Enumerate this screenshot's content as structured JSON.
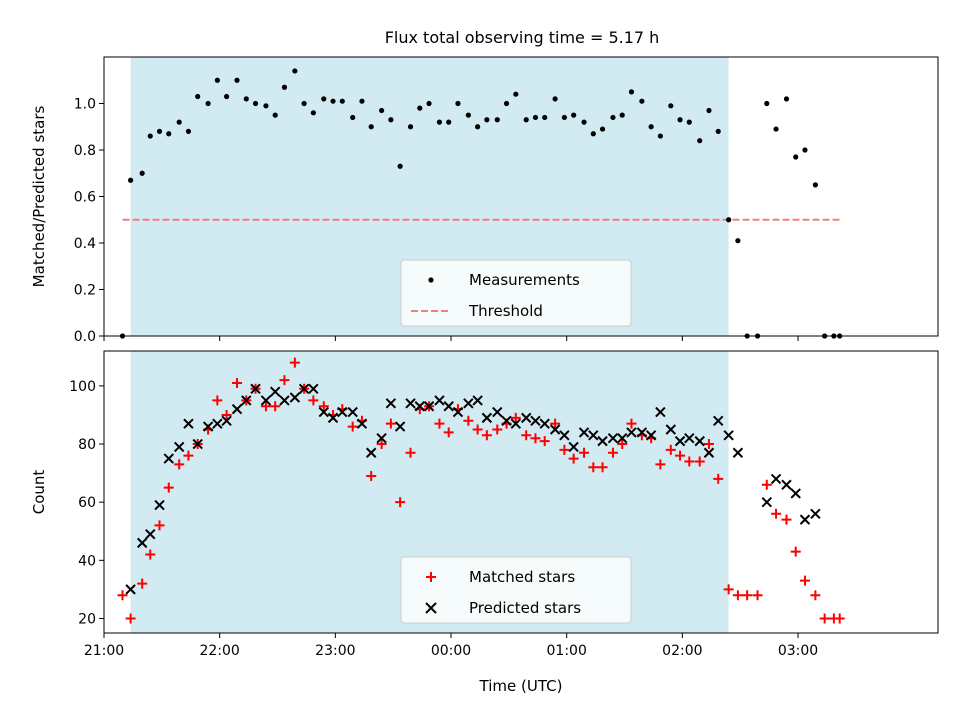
{
  "title": "Flux total observing time = 5.17 h",
  "colors": {
    "shade": "#add8e6",
    "measurement": "#000000",
    "threshold": "#f08080",
    "matched": "#ff0000",
    "predicted": "#000000"
  },
  "chart_data": [
    {
      "type": "scatter",
      "ylabel": "Matched/Predicted stars",
      "xlabel": "",
      "ylim": [
        0,
        1.2
      ],
      "yticks": [
        0.0,
        0.2,
        0.4,
        0.6,
        0.8,
        1.0
      ],
      "ytick_labels": [
        "0.0",
        "0.2",
        "0.4",
        "0.6",
        "0.8",
        "1.0"
      ],
      "xlim": [
        -0.23,
        6.98
      ],
      "shaded_interval": [
        0.0,
        5.17
      ],
      "grid": false,
      "legend": {
        "placement": "lower-center",
        "entries": [
          "Measurements",
          "Threshold"
        ]
      },
      "threshold": {
        "name": "Threshold",
        "value": 0.5,
        "x_range": [
          -0.07,
          6.13
        ]
      },
      "series": [
        {
          "name": "Measurements",
          "marker": "dot",
          "x": [
            -0.07,
            0.0,
            0.1,
            0.17,
            0.25,
            0.33,
            0.42,
            0.5,
            0.58,
            0.67,
            0.75,
            0.83,
            0.92,
            1.0,
            1.08,
            1.17,
            1.25,
            1.33,
            1.42,
            1.5,
            1.58,
            1.67,
            1.75,
            1.83,
            1.92,
            2.0,
            2.08,
            2.17,
            2.25,
            2.33,
            2.42,
            2.5,
            2.58,
            2.67,
            2.75,
            2.83,
            2.92,
            3.0,
            3.08,
            3.17,
            3.25,
            3.33,
            3.42,
            3.5,
            3.58,
            3.67,
            3.75,
            3.83,
            3.92,
            4.0,
            4.08,
            4.17,
            4.25,
            4.33,
            4.42,
            4.5,
            4.58,
            4.67,
            4.75,
            4.83,
            4.92,
            5.0,
            5.08,
            5.17,
            5.25,
            5.33,
            5.42,
            5.5,
            5.58,
            5.67,
            5.75,
            5.83,
            5.92,
            6.0,
            6.08,
            6.13
          ],
          "y": [
            0.0,
            0.67,
            0.7,
            0.86,
            0.88,
            0.87,
            0.92,
            0.88,
            1.03,
            1.0,
            1.1,
            1.03,
            1.1,
            1.02,
            1.0,
            0.99,
            0.95,
            1.07,
            1.14,
            1.0,
            0.96,
            1.02,
            1.01,
            1.01,
            0.94,
            1.01,
            0.9,
            0.97,
            0.93,
            0.73,
            0.9,
            0.98,
            1.0,
            0.92,
            0.92,
            1.0,
            0.95,
            0.9,
            0.93,
            0.93,
            1.0,
            1.04,
            0.93,
            0.94,
            0.94,
            1.02,
            0.94,
            0.95,
            0.92,
            0.87,
            0.89,
            0.94,
            0.95,
            1.05,
            1.01,
            0.9,
            0.86,
            0.99,
            0.93,
            0.92,
            0.84,
            0.97,
            0.88,
            0.5,
            0.41,
            0.0,
            0.0,
            1.0,
            0.89,
            1.02,
            0.77,
            0.8,
            0.65,
            0.0,
            0.0,
            0.0
          ]
        }
      ]
    },
    {
      "type": "scatter",
      "ylabel": "Count",
      "xlabel": "Time (UTC)",
      "ylim": [
        15,
        112
      ],
      "yticks": [
        20,
        40,
        60,
        80,
        100
      ],
      "ytick_labels": [
        "20",
        "40",
        "60",
        "80",
        "100"
      ],
      "xlim": [
        -0.23,
        6.98
      ],
      "xticks": [
        -0.23,
        0.77,
        1.77,
        2.77,
        3.77,
        4.77,
        5.77
      ],
      "xtick_labels": [
        "21:00",
        "22:00",
        "23:00",
        "00:00",
        "01:00",
        "02:00",
        "03:00"
      ],
      "shaded_interval": [
        0.0,
        5.17
      ],
      "grid": false,
      "legend": {
        "placement": "lower-center",
        "entries": [
          "Matched stars",
          "Predicted stars"
        ]
      },
      "series": [
        {
          "name": "Matched stars",
          "marker": "plus",
          "x": [
            -0.07,
            0.0,
            0.1,
            0.17,
            0.25,
            0.33,
            0.42,
            0.5,
            0.58,
            0.67,
            0.75,
            0.83,
            0.92,
            1.0,
            1.08,
            1.17,
            1.25,
            1.33,
            1.42,
            1.5,
            1.58,
            1.67,
            1.75,
            1.83,
            1.92,
            2.0,
            2.08,
            2.17,
            2.25,
            2.33,
            2.42,
            2.5,
            2.58,
            2.67,
            2.75,
            2.83,
            2.92,
            3.0,
            3.08,
            3.17,
            3.25,
            3.33,
            3.42,
            3.5,
            3.58,
            3.67,
            3.75,
            3.83,
            3.92,
            4.0,
            4.08,
            4.17,
            4.25,
            4.33,
            4.42,
            4.5,
            4.58,
            4.67,
            4.75,
            4.83,
            4.92,
            5.0,
            5.08,
            5.17,
            5.25,
            5.33,
            5.42,
            5.5,
            5.58,
            5.67,
            5.75,
            5.83,
            5.92,
            6.0,
            6.08,
            6.13
          ],
          "y": [
            28,
            20,
            32,
            42,
            52,
            65,
            73,
            76,
            80,
            85,
            95,
            90,
            101,
            95,
            99,
            93,
            93,
            102,
            108,
            99,
            95,
            93,
            90,
            92,
            86,
            88,
            69,
            80,
            87,
            60,
            77,
            92,
            93,
            87,
            84,
            92,
            88,
            85,
            83,
            85,
            87,
            89,
            83,
            82,
            81,
            87,
            78,
            75,
            77,
            72,
            72,
            77,
            80,
            87,
            83,
            82,
            73,
            78,
            76,
            74,
            74,
            80,
            68,
            30,
            28,
            28,
            28,
            66,
            56,
            54,
            43,
            33,
            28,
            20,
            20,
            20
          ]
        },
        {
          "name": "Predicted stars",
          "marker": "x",
          "x": [
            0.0,
            0.1,
            0.17,
            0.25,
            0.33,
            0.42,
            0.5,
            0.58,
            0.67,
            0.75,
            0.83,
            0.92,
            1.0,
            1.08,
            1.17,
            1.25,
            1.33,
            1.42,
            1.5,
            1.58,
            1.67,
            1.75,
            1.83,
            1.92,
            2.0,
            2.08,
            2.17,
            2.25,
            2.33,
            2.42,
            2.5,
            2.58,
            2.67,
            2.75,
            2.83,
            2.92,
            3.0,
            3.08,
            3.17,
            3.25,
            3.33,
            3.42,
            3.5,
            3.58,
            3.67,
            3.75,
            3.83,
            3.92,
            4.0,
            4.08,
            4.17,
            4.25,
            4.33,
            4.42,
            4.5,
            4.58,
            4.67,
            4.75,
            4.83,
            4.92,
            5.0,
            5.08,
            5.17,
            5.25,
            5.5,
            5.58,
            5.67,
            5.75,
            5.83,
            5.92
          ],
          "y": [
            30,
            46,
            49,
            59,
            75,
            79,
            87,
            80,
            86,
            87,
            88,
            92,
            95,
            99,
            95,
            98,
            95,
            96,
            99,
            99,
            91,
            89,
            91,
            91,
            87,
            77,
            82,
            94,
            86,
            94,
            93,
            93,
            95,
            93,
            91,
            94,
            95,
            89,
            91,
            88,
            87,
            89,
            88,
            87,
            85,
            83,
            79,
            84,
            83,
            81,
            82,
            82,
            84,
            84,
            83,
            91,
            85,
            81,
            82,
            81,
            77,
            88,
            83,
            77,
            60,
            68,
            66,
            63,
            54,
            56
          ]
        }
      ]
    }
  ]
}
